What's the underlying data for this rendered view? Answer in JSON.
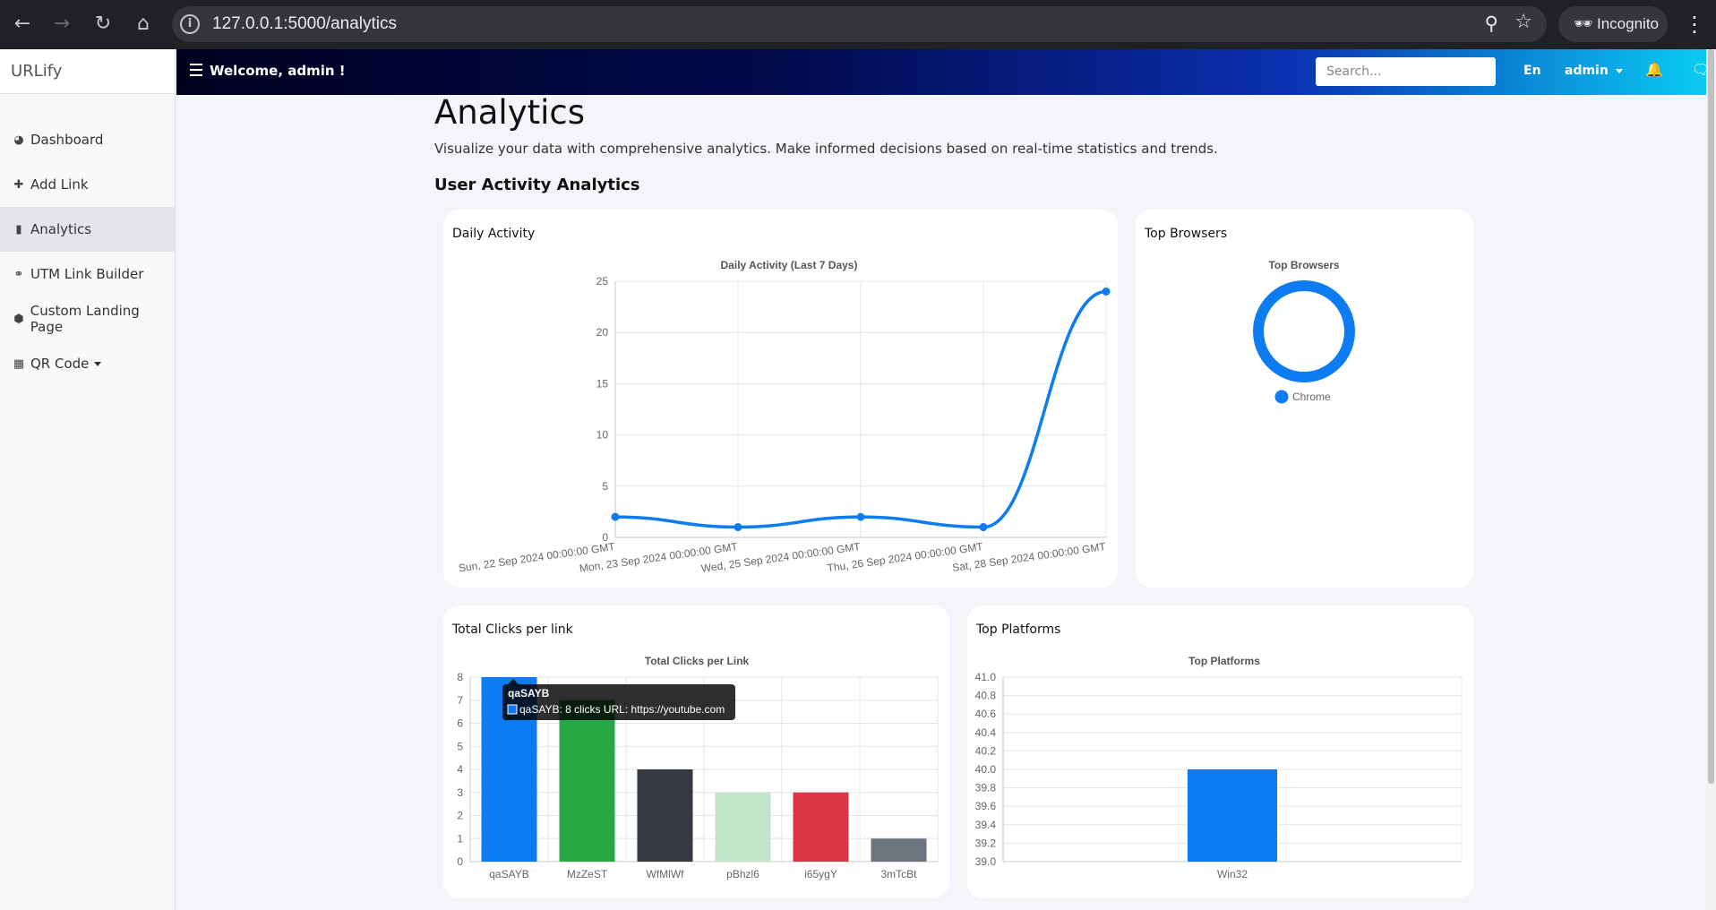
{
  "browser": {
    "url": "127.0.0.1:5000/analytics",
    "profile_label": "Incognito"
  },
  "sidebar": {
    "brand": "URLify",
    "items": [
      {
        "label": "Dashboard",
        "icon": "dashboard-icon"
      },
      {
        "label": "Add Link",
        "icon": "puzzle-icon"
      },
      {
        "label": "Analytics",
        "icon": "bar-chart-icon",
        "active": true
      },
      {
        "label": "UTM Link Builder",
        "icon": "link-icon"
      },
      {
        "label": "Custom Landing Page",
        "icon": "cube-icon"
      },
      {
        "label": "QR Code",
        "icon": "qrcode-icon",
        "has_dropdown": true
      }
    ]
  },
  "topbar": {
    "welcome": "Welcome, admin !",
    "search_placeholder": "Search...",
    "language": "En",
    "user": "admin"
  },
  "main": {
    "title": "Analytics",
    "description": "Visualize your data with comprehensive analytics. Make informed decisions based on real-time statistics and trends.",
    "section_title": "User Activity Analytics"
  },
  "cards": {
    "daily_activity": "Daily Activity",
    "top_browsers": "Top Browsers",
    "total_clicks": "Total Clicks per link",
    "top_platforms": "Top Platforms"
  },
  "colors": {
    "primary": "#0d7cf2",
    "green": "#28a745",
    "dark": "#343a40",
    "light_green": "#c3e6cb",
    "red": "#dc3545",
    "gray": "#6c757d"
  },
  "chart_data": [
    {
      "id": "daily",
      "type": "line",
      "title": "Daily Activity (Last 7 Days)",
      "x": [
        "Sun, 22 Sep 2024 00:00:00 GMT",
        "Mon, 23 Sep 2024 00:00:00 GMT",
        "Wed, 25 Sep 2024 00:00:00 GMT",
        "Thu, 26 Sep 2024 00:00:00 GMT",
        "Sat, 28 Sep 2024 00:00:00 GMT"
      ],
      "values": [
        2,
        1,
        2,
        1,
        24
      ],
      "ylim": [
        0,
        25
      ],
      "yticks": [
        "0",
        "5",
        "10",
        "15",
        "20",
        "25"
      ],
      "grid": true,
      "color": "#0d7cf2"
    },
    {
      "id": "browsers",
      "type": "pie",
      "title": "Top Browsers",
      "categories": [
        "Chrome"
      ],
      "values": [
        1
      ],
      "legend": "bottom",
      "color": "#0d7cf2"
    },
    {
      "id": "clicks",
      "type": "bar",
      "title": "Total Clicks per Link",
      "categories": [
        "qaSAYB",
        "MzZeST",
        "WfMlWf",
        "pBhzl6",
        "i65ygY",
        "3mTcBt"
      ],
      "values": [
        8,
        7,
        4,
        3,
        3,
        1
      ],
      "colors": [
        "#0d7cf2",
        "#28a745",
        "#343a40",
        "#c3e6cb",
        "#dc3545",
        "#6c757d"
      ],
      "ylim": [
        0,
        8
      ],
      "yticks": [
        "0",
        "1",
        "2",
        "3",
        "4",
        "5",
        "6",
        "7",
        "8"
      ],
      "grid": true,
      "tooltip": {
        "title": "qaSAYB",
        "text": "qaSAYB: 8 clicks URL: https://youtube.com"
      }
    },
    {
      "id": "platforms",
      "type": "bar",
      "title": "Top Platforms",
      "categories": [
        "Win32"
      ],
      "values": [
        40
      ],
      "colors": [
        "#0d7cf2"
      ],
      "ylim": [
        39.0,
        41.0
      ],
      "yticks": [
        "39.0",
        "39.2",
        "39.4",
        "39.6",
        "39.8",
        "40.0",
        "40.2",
        "40.4",
        "40.6",
        "40.8",
        "41.0"
      ],
      "grid": true
    }
  ]
}
